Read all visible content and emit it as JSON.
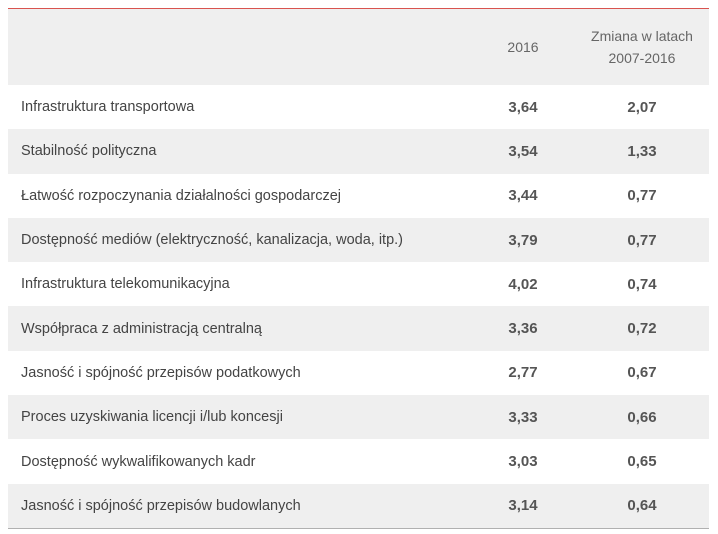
{
  "header": {
    "col_2016": "2016",
    "col_change_line1": "Zmiana w latach",
    "col_change_line2": "2007-2016"
  },
  "rows": [
    {
      "label": "Infrastruktura transportowa",
      "v2016": "3,64",
      "change": "2,07"
    },
    {
      "label": "Stabilność polityczna",
      "v2016": "3,54",
      "change": "1,33"
    },
    {
      "label": "Łatwość rozpoczynania działalności gospodarczej",
      "v2016": "3,44",
      "change": "0,77"
    },
    {
      "label": "Dostępność mediów (elektryczność, kanalizacja, woda, itp.)",
      "v2016": "3,79",
      "change": "0,77"
    },
    {
      "label": "Infrastruktura telekomunikacyjna",
      "v2016": "4,02",
      "change": "0,74"
    },
    {
      "label": "Współpraca z administracją centralną",
      "v2016": "3,36",
      "change": "0,72"
    },
    {
      "label": "Jasność i spójność przepisów podatkowych",
      "v2016": "2,77",
      "change": "0,67"
    },
    {
      "label": "Proces uzyskiwania licencji i/lub koncesji",
      "v2016": "3,33",
      "change": "0,66"
    },
    {
      "label": "Dostępność wykwalifikowanych kadr",
      "v2016": "3,03",
      "change": "0,65"
    },
    {
      "label": "Jasność i spójność przepisów budowlanych",
      "v2016": "3,14",
      "change": "0,64"
    }
  ],
  "colors": {
    "top_rule": "#d9534f",
    "stripe": "#efefef",
    "bottom_rule": "#b0b0b0"
  }
}
